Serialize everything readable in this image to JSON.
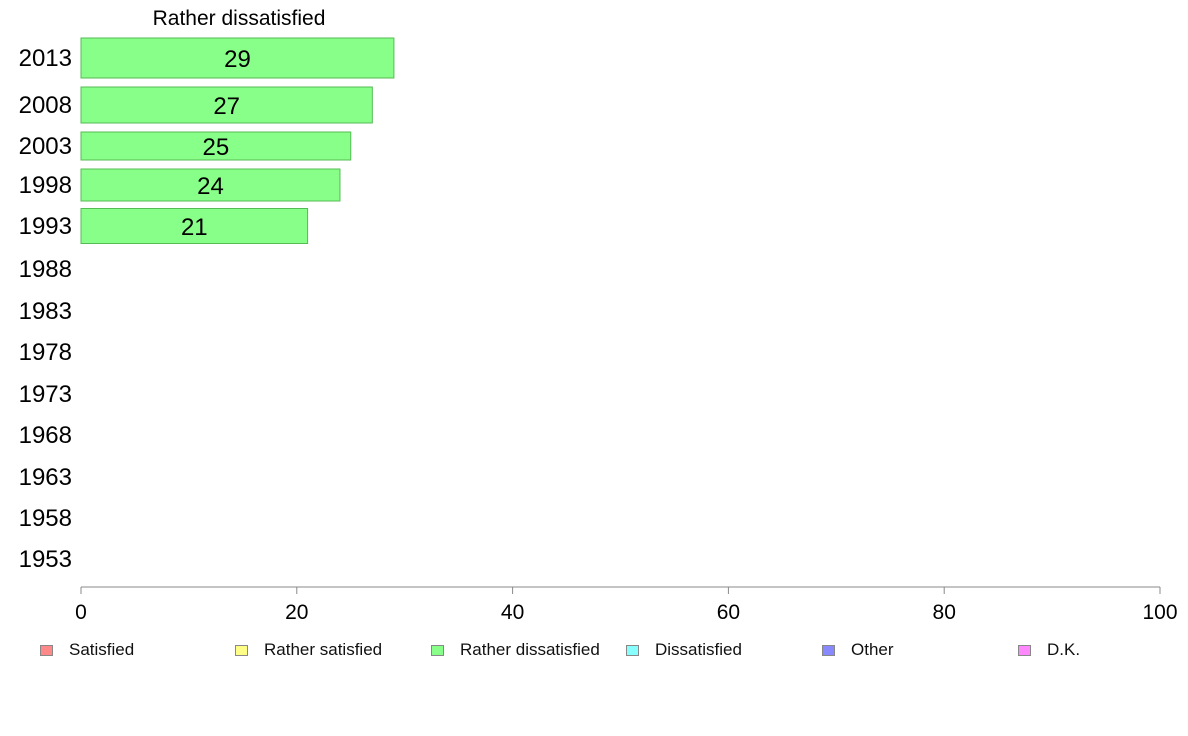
{
  "chart_data": {
    "type": "bar",
    "orientation": "horizontal",
    "title": "Rather dissatisfied",
    "categories": [
      "2013",
      "2008",
      "2003",
      "1998",
      "1993",
      "1988",
      "1983",
      "1978",
      "1973",
      "1968",
      "1963",
      "1958",
      "1953"
    ],
    "series": [
      {
        "name": "Rather dissatisfied",
        "values": [
          29,
          27,
          25,
          24,
          21,
          null,
          null,
          null,
          null,
          null,
          null,
          null,
          null
        ]
      }
    ],
    "data_labels": [
      "29",
      "27",
      "25",
      "24",
      "21",
      "",
      "",
      "",
      "",
      "",
      "",
      "",
      ""
    ],
    "xlim": [
      0,
      100
    ],
    "xticks": [
      0,
      20,
      40,
      60,
      80,
      100
    ],
    "grid": false,
    "bar_color": "#88ff88",
    "bar_border_color": "#55bb55",
    "legend_position": "bottom",
    "legend": [
      {
        "label": "Satisfied",
        "color": "#ff8888"
      },
      {
        "label": "Rather satisfied",
        "color": "#ffff88"
      },
      {
        "label": "Rather dissatisfied",
        "color": "#88ff88"
      },
      {
        "label": "Dissatisfied",
        "color": "#88ffff"
      },
      {
        "label": "Other",
        "color": "#8888ff"
      },
      {
        "label": "D.K.",
        "color": "#ff88ff"
      }
    ]
  }
}
